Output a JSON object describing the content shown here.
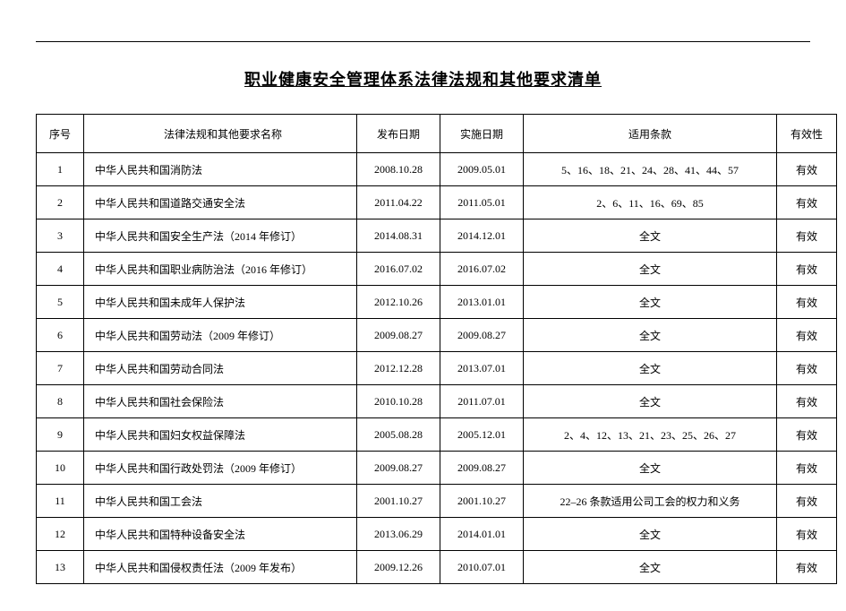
{
  "title": "职业健康安全管理体系法律法规和其他要求清单",
  "columns": {
    "seq": "序号",
    "name": "法律法规和其他要求名称",
    "pub": "发布日期",
    "impl": "实施日期",
    "clause": "适用条款",
    "valid": "有效性"
  },
  "rows": [
    {
      "seq": "1",
      "name": "中华人民共和国消防法",
      "pub": "2008.10.28",
      "impl": "2009.05.01",
      "clause": "5、16、18、21、24、28、41、44、57",
      "valid": "有效"
    },
    {
      "seq": "2",
      "name": "中华人民共和国道路交通安全法",
      "pub": "2011.04.22",
      "impl": "2011.05.01",
      "clause": "2、6、11、16、69、85",
      "valid": "有效"
    },
    {
      "seq": "3",
      "name": "中华人民共和国安全生产法（2014 年修订）",
      "pub": "2014.08.31",
      "impl": "2014.12.01",
      "clause": "全文",
      "valid": "有效"
    },
    {
      "seq": "4",
      "name": "中华人民共和国职业病防治法（2016 年修订）",
      "pub": "2016.07.02",
      "impl": "2016.07.02",
      "clause": "全文",
      "valid": "有效"
    },
    {
      "seq": "5",
      "name": "中华人民共和国未成年人保护法",
      "pub": "2012.10.26",
      "impl": "2013.01.01",
      "clause": "全文",
      "valid": "有效"
    },
    {
      "seq": "6",
      "name": "中华人民共和国劳动法（2009 年修订）",
      "pub": "2009.08.27",
      "impl": "2009.08.27",
      "clause": "全文",
      "valid": "有效"
    },
    {
      "seq": "7",
      "name": "中华人民共和国劳动合同法",
      "pub": "2012.12.28",
      "impl": "2013.07.01",
      "clause": "全文",
      "valid": "有效"
    },
    {
      "seq": "8",
      "name": "中华人民共和国社会保险法",
      "pub": "2010.10.28",
      "impl": "2011.07.01",
      "clause": "全文",
      "valid": "有效"
    },
    {
      "seq": "9",
      "name": "中华人民共和国妇女权益保障法",
      "pub": "2005.08.28",
      "impl": "2005.12.01",
      "clause": "2、4、12、13、21、23、25、26、27",
      "valid": "有效"
    },
    {
      "seq": "10",
      "name": "中华人民共和国行政处罚法（2009 年修订）",
      "pub": "2009.08.27",
      "impl": "2009.08.27",
      "clause": "全文",
      "valid": "有效"
    },
    {
      "seq": "11",
      "name": "中华人民共和国工会法",
      "pub": "2001.10.27",
      "impl": "2001.10.27",
      "clause": "22–26 条款适用公司工会的权力和义务",
      "valid": "有效"
    },
    {
      "seq": "12",
      "name": "中华人民共和国特种设备安全法",
      "pub": "2013.06.29",
      "impl": "2014.01.01",
      "clause": "全文",
      "valid": "有效"
    },
    {
      "seq": "13",
      "name": "中华人民共和国侵权责任法（2009 年发布）",
      "pub": "2009.12.26",
      "impl": "2010.07.01",
      "clause": "全文",
      "valid": "有效"
    }
  ]
}
